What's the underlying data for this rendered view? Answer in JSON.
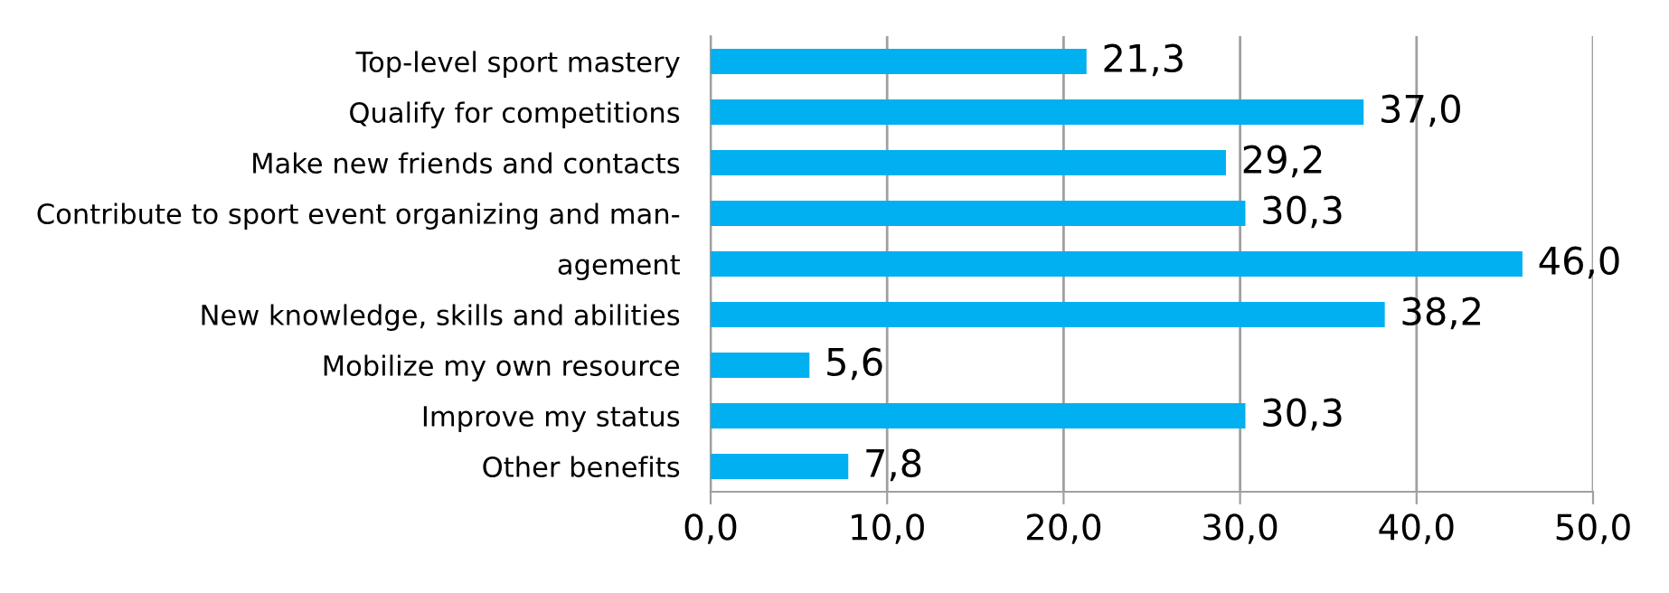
{
  "chart_data": {
    "type": "bar",
    "orientation": "horizontal",
    "categories": [
      "Top-level sport mastery",
      "Qualify for competitions",
      "Make new friends and contacts",
      "Contribute to sport event organizing and man-",
      "agement",
      "New knowledge, skills and abilities",
      "Mobilize my own resource",
      "Improve my status",
      "Other benefits"
    ],
    "values": [
      21.3,
      37.0,
      29.2,
      30.3,
      46.0,
      38.2,
      5.6,
      30.3,
      7.8
    ],
    "value_labels": [
      "21,3",
      "37,0",
      "29,2",
      "30,3",
      "46,0",
      "38,2",
      "5,6",
      "30,3",
      "7,8"
    ],
    "color": "#00b0f0",
    "xlim": [
      0,
      50
    ],
    "xticks": [
      {
        "value": 0,
        "label": "0,0"
      },
      {
        "value": 10,
        "label": "10,0"
      },
      {
        "value": 20,
        "label": "20,0"
      },
      {
        "value": 30,
        "label": "30,0"
      },
      {
        "value": 40,
        "label": "40,0"
      },
      {
        "value": 50,
        "label": "50,0"
      }
    ],
    "grid": "x",
    "legend": false
  }
}
